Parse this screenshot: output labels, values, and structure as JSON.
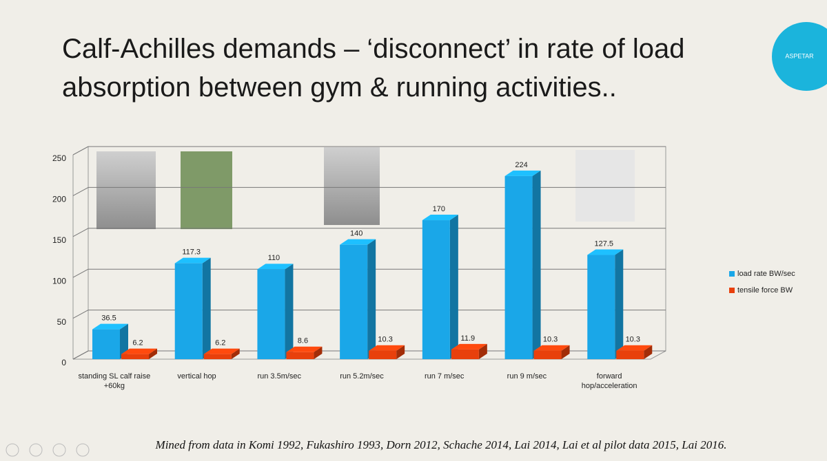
{
  "slide": {
    "title_line1": "Calf-Achilles demands – ‘disconnect’ in rate of load",
    "title_line2": "absorption between gym & running activities..",
    "logo": "ASPETAR",
    "footnote": "Mined from data in Komi 1992, Fukashiro 1993, Dorn 2012, Schache 2014, Lai 2014, Lai et al pilot data 2015, Lai 2016."
  },
  "chart_data": {
    "type": "bar3d",
    "categories": [
      "standing SL calf raise +60kg",
      "vertical hop",
      "run 3.5m/sec",
      "run 5.2m/sec",
      "run 7 m/sec",
      "run 9 m/sec",
      "forward hop/acceleration"
    ],
    "series": [
      {
        "name": "load rate BW/sec",
        "color": "#1aa7e8",
        "values": [
          36.5,
          117.3,
          110,
          140,
          170,
          224,
          127.5
        ]
      },
      {
        "name": "tensile force BW",
        "color": "#e8400c",
        "values": [
          6.2,
          6.2,
          8.6,
          10.3,
          11.9,
          10.3,
          10.3
        ]
      }
    ],
    "ylim": [
      0,
      250
    ],
    "yticks": [
      0,
      50,
      100,
      150,
      200,
      250
    ],
    "grid": true,
    "legend": "right"
  }
}
